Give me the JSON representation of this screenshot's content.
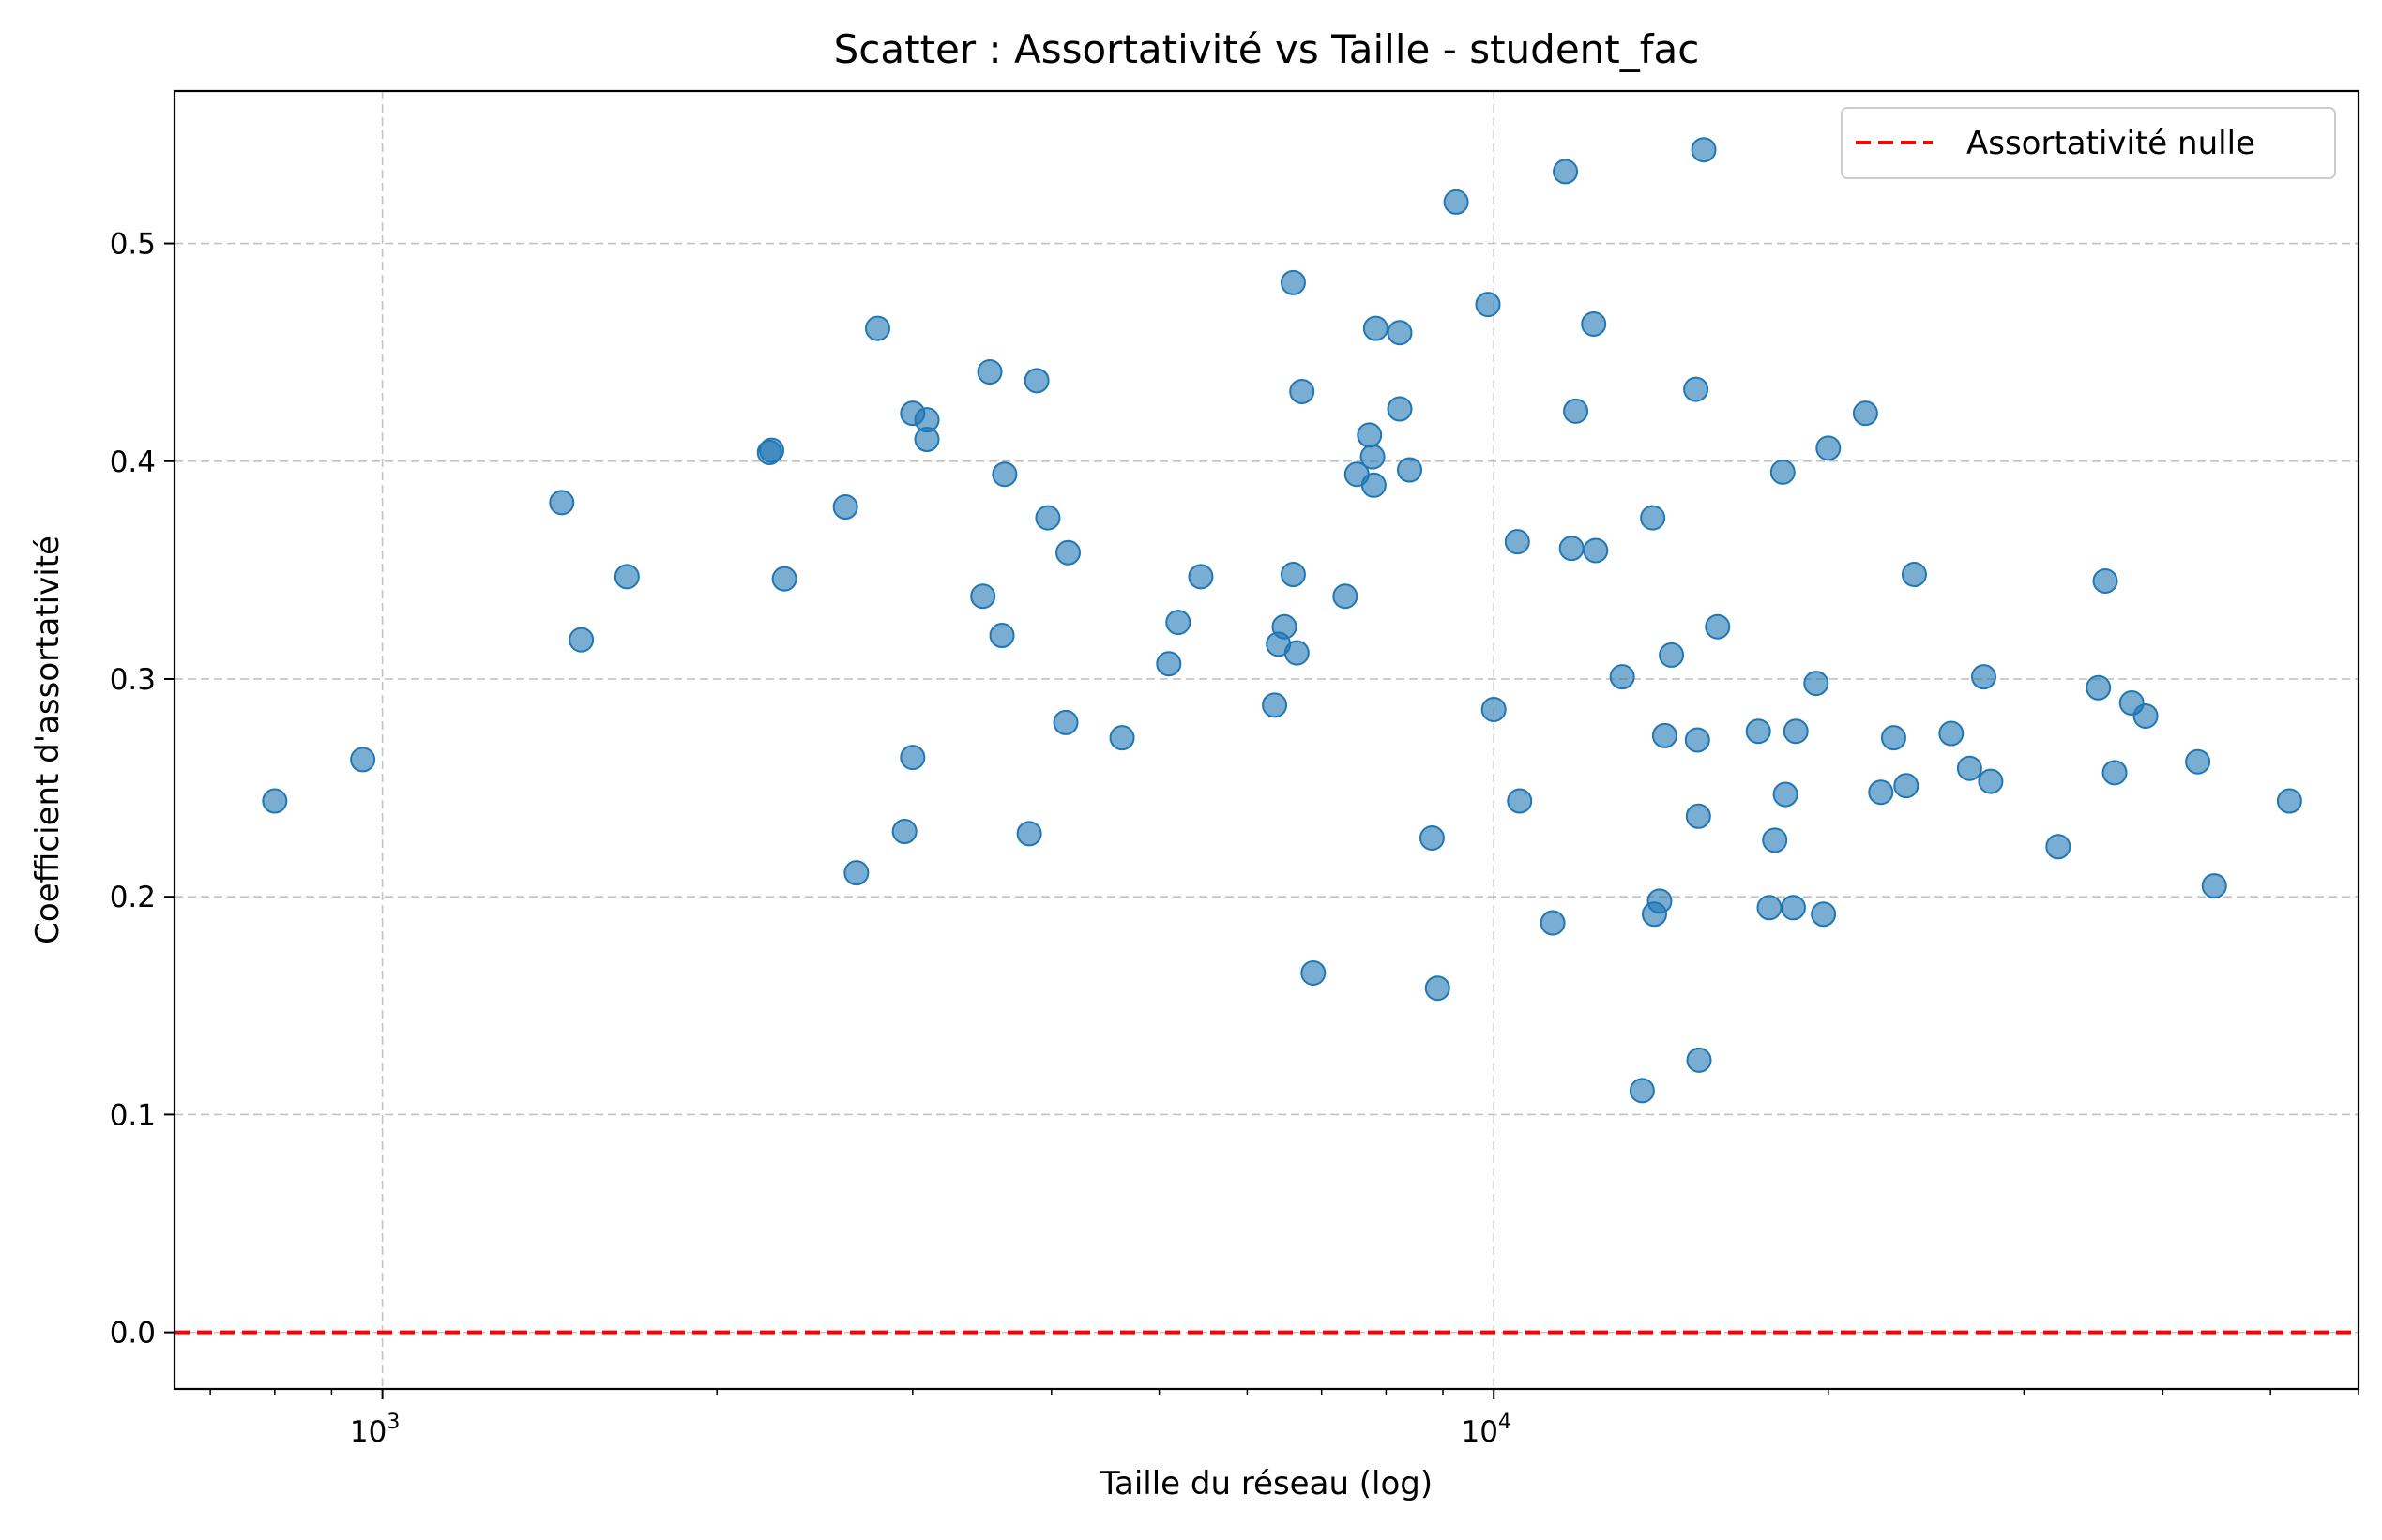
{
  "chart_data": {
    "type": "scatter",
    "title": "Scatter : Assortativité vs Taille - student_fac",
    "xlabel": "Taille du réseau (log)",
    "ylabel": "Coefficient d'assortativité",
    "xscale": "log",
    "xlim": [
      650,
      60000
    ],
    "ylim": [
      -0.026,
      0.57
    ],
    "xticks": [
      {
        "value": 1000,
        "base": "10",
        "exp": "3"
      },
      {
        "value": 10000,
        "base": "10",
        "exp": "4"
      }
    ],
    "yticks": [
      0.0,
      0.1,
      0.2,
      0.3,
      0.4,
      0.5
    ],
    "grid": true,
    "legend_position": "top-right",
    "color": "#1f77b4",
    "reference_line": {
      "y": 0.0,
      "label": "Assortativité nulle",
      "color": "#ff0000",
      "style": "dashed"
    },
    "series": [
      {
        "points": [
          [
            800,
            0.244
          ],
          [
            960,
            0.263
          ],
          [
            1450,
            0.381
          ],
          [
            1510,
            0.318
          ],
          [
            1660,
            0.347
          ],
          [
            2230,
            0.404
          ],
          [
            2240,
            0.405
          ],
          [
            2300,
            0.346
          ],
          [
            2610,
            0.379
          ],
          [
            2670,
            0.211
          ],
          [
            2790,
            0.461
          ],
          [
            2950,
            0.23
          ],
          [
            3000,
            0.264
          ],
          [
            3000,
            0.422
          ],
          [
            3090,
            0.419
          ],
          [
            3090,
            0.41
          ],
          [
            3470,
            0.338
          ],
          [
            3520,
            0.441
          ],
          [
            3610,
            0.32
          ],
          [
            3630,
            0.394
          ],
          [
            3820,
            0.229
          ],
          [
            3880,
            0.437
          ],
          [
            3970,
            0.374
          ],
          [
            4120,
            0.28
          ],
          [
            4140,
            0.358
          ],
          [
            4630,
            0.273
          ],
          [
            5100,
            0.307
          ],
          [
            5200,
            0.326
          ],
          [
            5450,
            0.347
          ],
          [
            6350,
            0.288
          ],
          [
            6400,
            0.316
          ],
          [
            6480,
            0.324
          ],
          [
            6600,
            0.482
          ],
          [
            6600,
            0.348
          ],
          [
            6650,
            0.312
          ],
          [
            6720,
            0.432
          ],
          [
            6880,
            0.165
          ],
          [
            7350,
            0.338
          ],
          [
            7530,
            0.394
          ],
          [
            7730,
            0.412
          ],
          [
            7780,
            0.402
          ],
          [
            7800,
            0.389
          ],
          [
            7830,
            0.461
          ],
          [
            8230,
            0.424
          ],
          [
            8230,
            0.459
          ],
          [
            8400,
            0.396
          ],
          [
            8800,
            0.227
          ],
          [
            8900,
            0.158
          ],
          [
            9250,
            0.519
          ],
          [
            9880,
            0.472
          ],
          [
            10000,
            0.286
          ],
          [
            10500,
            0.363
          ],
          [
            10550,
            0.244
          ],
          [
            11300,
            0.188
          ],
          [
            11600,
            0.533
          ],
          [
            11750,
            0.36
          ],
          [
            11850,
            0.423
          ],
          [
            12300,
            0.463
          ],
          [
            12350,
            0.359
          ],
          [
            13050,
            0.301
          ],
          [
            13600,
            0.111
          ],
          [
            13900,
            0.374
          ],
          [
            13950,
            0.192
          ],
          [
            14100,
            0.198
          ],
          [
            14250,
            0.274
          ],
          [
            14450,
            0.311
          ],
          [
            15200,
            0.433
          ],
          [
            15250,
            0.272
          ],
          [
            15280,
            0.237
          ],
          [
            15300,
            0.125
          ],
          [
            15450,
            0.543
          ],
          [
            15900,
            0.324
          ],
          [
            17300,
            0.276
          ],
          [
            17700,
            0.195
          ],
          [
            17900,
            0.226
          ],
          [
            18200,
            0.395
          ],
          [
            18300,
            0.247
          ],
          [
            18600,
            0.195
          ],
          [
            18700,
            0.276
          ],
          [
            19500,
            0.298
          ],
          [
            19800,
            0.192
          ],
          [
            20000,
            0.406
          ],
          [
            21600,
            0.422
          ],
          [
            22300,
            0.248
          ],
          [
            22900,
            0.273
          ],
          [
            23500,
            0.251
          ],
          [
            23900,
            0.348
          ],
          [
            25800,
            0.275
          ],
          [
            26800,
            0.259
          ],
          [
            27600,
            0.301
          ],
          [
            28000,
            0.253
          ],
          [
            32200,
            0.223
          ],
          [
            35000,
            0.296
          ],
          [
            35500,
            0.345
          ],
          [
            36200,
            0.257
          ],
          [
            37500,
            0.289
          ],
          [
            38600,
            0.283
          ],
          [
            43000,
            0.262
          ],
          [
            44500,
            0.205
          ],
          [
            52000,
            0.244
          ]
        ]
      }
    ]
  }
}
